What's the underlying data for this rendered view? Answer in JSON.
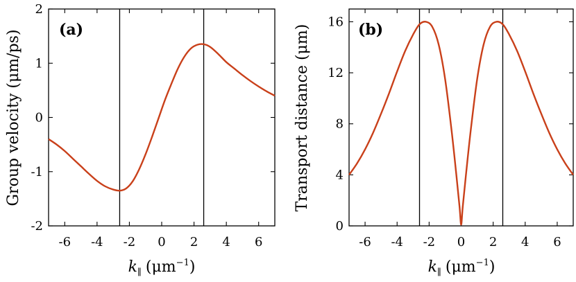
{
  "chart_data": [
    {
      "type": "line",
      "panel_label": "(a)",
      "title": "",
      "xlabel": "k_∥ (μm⁻¹)",
      "xlabel_main": "k",
      "xlabel_sub": "∥",
      "xlabel_unit": "(μm",
      "xlabel_exp": "−1",
      "xlabel_close": ")",
      "ylabel": "Group velocity (μm/ps)",
      "xlim": [
        -7,
        7
      ],
      "ylim": [
        -2,
        2
      ],
      "xticks": [
        -6,
        -4,
        -2,
        0,
        2,
        4,
        6
      ],
      "yticks": [
        -2,
        -1,
        0,
        1,
        2
      ],
      "xtick_labels": [
        "-6",
        "-4",
        "-2",
        "0",
        "2",
        "4",
        "6"
      ],
      "ytick_labels": [
        "-2",
        "-1",
        "0",
        "1",
        "2"
      ],
      "vlines": [
        -2.6,
        2.6
      ],
      "series": [
        {
          "name": "group velocity",
          "color": "#c9401a",
          "x": [
            -7,
            -6.5,
            -6,
            -5.5,
            -5,
            -4.5,
            -4,
            -3.5,
            -3,
            -2.6,
            -2.2,
            -1.8,
            -1.4,
            -1,
            -0.6,
            -0.2,
            0.2,
            0.6,
            1,
            1.4,
            1.8,
            2.2,
            2.6,
            3,
            3.5,
            4,
            4.5,
            5,
            5.5,
            6,
            6.5,
            7
          ],
          "y": [
            -0.4,
            -0.5,
            -0.62,
            -0.76,
            -0.9,
            -1.04,
            -1.17,
            -1.27,
            -1.33,
            -1.35,
            -1.31,
            -1.18,
            -0.96,
            -0.68,
            -0.36,
            -0.02,
            0.32,
            0.62,
            0.9,
            1.12,
            1.27,
            1.34,
            1.35,
            1.3,
            1.17,
            1.02,
            0.9,
            0.78,
            0.67,
            0.57,
            0.48,
            0.4
          ]
        }
      ]
    },
    {
      "type": "line",
      "panel_label": "(b)",
      "title": "",
      "xlabel": "k_∥ (μm⁻¹)",
      "xlabel_main": "k",
      "xlabel_sub": "∥",
      "xlabel_unit": "(μm",
      "xlabel_exp": "−1",
      "xlabel_close": ")",
      "ylabel": "Transport distance (μm)",
      "xlim": [
        -7,
        7
      ],
      "ylim": [
        0,
        17
      ],
      "xticks": [
        -6,
        -4,
        -2,
        0,
        2,
        4,
        6
      ],
      "yticks": [
        0,
        4,
        8,
        12,
        16
      ],
      "xtick_labels": [
        "-6",
        "-4",
        "-2",
        "0",
        "2",
        "4",
        "6"
      ],
      "ytick_labels": [
        "0",
        "4",
        "8",
        "12",
        "16"
      ],
      "vlines": [
        -2.6,
        2.6
      ],
      "series": [
        {
          "name": "transport distance",
          "color": "#c9401a",
          "x": [
            -7,
            -6.5,
            -6,
            -5.5,
            -5,
            -4.5,
            -4,
            -3.5,
            -3,
            -2.6,
            -2.2,
            -1.8,
            -1.4,
            -1,
            -0.6,
            -0.3,
            -0.1,
            0,
            0.1,
            0.3,
            0.6,
            1,
            1.4,
            1.8,
            2.2,
            2.6,
            3,
            3.5,
            4,
            4.5,
            5,
            5.5,
            6,
            6.5,
            7
          ],
          "y": [
            4.0,
            4.9,
            6.0,
            7.3,
            8.8,
            10.4,
            12.1,
            13.7,
            15.0,
            15.8,
            16.0,
            15.6,
            14.2,
            11.5,
            7.5,
            4.0,
            1.5,
            0.1,
            1.5,
            4.0,
            7.5,
            11.5,
            14.2,
            15.6,
            16.0,
            15.8,
            15.0,
            13.7,
            12.1,
            10.4,
            8.8,
            7.3,
            6.0,
            4.9,
            4.0
          ]
        }
      ]
    }
  ]
}
